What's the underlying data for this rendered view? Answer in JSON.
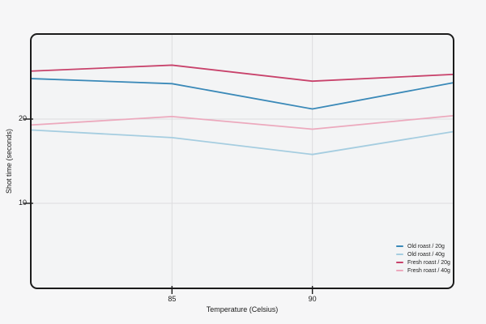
{
  "chart_data": {
    "type": "line",
    "title": "",
    "xlabel": "Temperature (Celsius)",
    "ylabel": "Shot time (seconds)",
    "x": [
      80,
      85,
      90,
      95
    ],
    "xlim": [
      80,
      95
    ],
    "ylim": [
      0,
      30
    ],
    "x_ticks": [
      85,
      90
    ],
    "y_ticks": [
      10,
      20
    ],
    "grid": true,
    "legend_position": "bottom-right",
    "series": [
      {
        "name": "Old roast / 20g",
        "color": "#3a89b8",
        "values": [
          24.8,
          24.2,
          21.2,
          24.3
        ]
      },
      {
        "name": "Old roast / 40g",
        "color": "#a5cde0",
        "values": [
          18.7,
          17.8,
          15.8,
          18.5
        ]
      },
      {
        "name": "Fresh roast / 20g",
        "color": "#c8426b",
        "values": [
          25.7,
          26.4,
          24.5,
          25.3
        ]
      },
      {
        "name": "Fresh roast / 40g",
        "color": "#eca9bd",
        "values": [
          19.3,
          20.3,
          18.8,
          20.4
        ]
      }
    ],
    "colors": {
      "border": "#1b1b1b",
      "gridline": "#dcdcde",
      "plot_background": "#f3f4f5",
      "page_background": "#f6f6f7"
    }
  }
}
